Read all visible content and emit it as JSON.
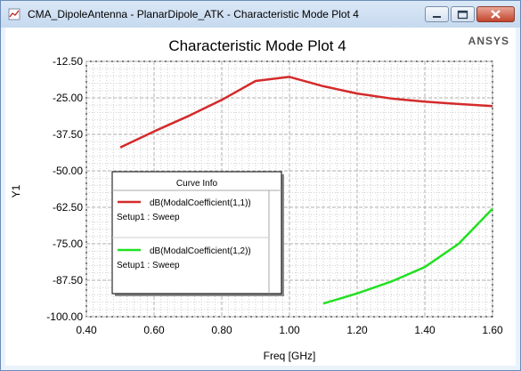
{
  "window": {
    "title": "CMA_DipoleAntenna - PlanarDipole_ATK - Characteristic Mode Plot 4",
    "icons": [
      "app-icon",
      "minimize-icon",
      "maximize-icon",
      "close-icon"
    ]
  },
  "branding": "ANSYS",
  "chart_data": {
    "type": "line",
    "title": "Characteristic Mode Plot 4",
    "xlabel": "Freq [GHz]",
    "ylabel": "Y1",
    "xlim": [
      0.4,
      1.6
    ],
    "ylim": [
      -100.0,
      -12.5
    ],
    "x_ticks": [
      "0.40",
      "0.60",
      "0.80",
      "1.00",
      "1.20",
      "1.40",
      "1.60"
    ],
    "y_ticks": [
      "-12.50",
      "-25.00",
      "-37.50",
      "-50.00",
      "-62.50",
      "-75.00",
      "-87.50",
      "-100.00"
    ],
    "grid": true,
    "legend_title": "Curve Info",
    "legend_position": "lower-left",
    "series": [
      {
        "name": "dB(ModalCoefficient(1,1))",
        "setup": "Setup1 : Sweep",
        "color": "#d42a2a",
        "x": [
          0.5,
          0.6,
          0.7,
          0.8,
          0.9,
          1.0,
          1.1,
          1.2,
          1.3,
          1.4,
          1.5,
          1.6
        ],
        "y": [
          -42.0,
          -36.5,
          -31.3,
          -25.7,
          -19.2,
          -17.8,
          -21.0,
          -23.5,
          -25.2,
          -26.3,
          -27.1,
          -27.8
        ]
      },
      {
        "name": "dB(ModalCoefficient(1,2))",
        "setup": "Setup1 : Sweep",
        "color": "#22e022",
        "x": [
          1.1,
          1.2,
          1.3,
          1.4,
          1.5,
          1.6
        ],
        "y": [
          -95.5,
          -92.0,
          -88.0,
          -83.0,
          -75.0,
          -63.0
        ]
      }
    ]
  }
}
